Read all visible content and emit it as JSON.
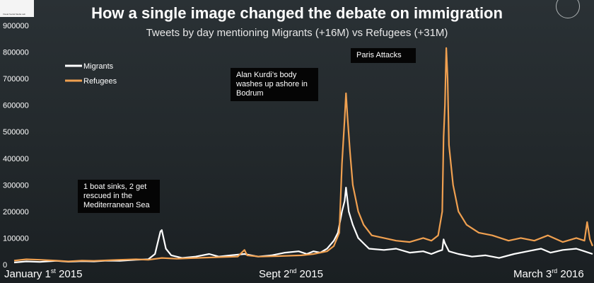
{
  "title": "How a single image changed the debate on immigration",
  "subtitle": "Tweets by day mentioning Migrants (+16M) vs Refugees (+31M)",
  "logo_text": "Visual Social Media Lab",
  "annotations": {
    "boat": "1 boat sinks, 2 get rescued in the Mediterranean Sea",
    "kurdi": "Alan Kurdi’s body washes up ashore in Bodrum",
    "paris": "Paris Attacks"
  },
  "x_labels": {
    "start": {
      "pre": "January 1",
      "sup": "st",
      "post": " 2015"
    },
    "mid": {
      "pre": "Sept 2",
      "sup": "nd",
      "post": " 2015"
    },
    "end": {
      "pre": "March 3",
      "sup": "rd",
      "post": " 2016"
    }
  },
  "colors": {
    "migrants": "#ffffff",
    "refugees": "#f0a050",
    "background": "#1e2326"
  },
  "chart_data": {
    "type": "line",
    "title": "How a single image changed the debate on immigration",
    "subtitle": "Tweets by day mentioning Migrants (+16M) vs Refugees (+31M)",
    "x_range": [
      "2015-01-01",
      "2016-03-03"
    ],
    "ylim": [
      0,
      900000
    ],
    "y_ticks": [
      0,
      100000,
      200000,
      300000,
      400000,
      500000,
      600000,
      700000,
      800000,
      900000
    ],
    "y_tick_labels": [
      "0",
      "100000",
      "200000",
      "300000",
      "400000",
      "500000",
      "600000",
      "700000",
      "800000",
      "900000"
    ],
    "grid": false,
    "legend": "top-left",
    "series": [
      {
        "name": "Migrants",
        "color": "#ffffff",
        "points": [
          [
            "2015-01-01",
            8000
          ],
          [
            "2015-01-10",
            12000
          ],
          [
            "2015-01-20",
            10000
          ],
          [
            "2015-02-01",
            14000
          ],
          [
            "2015-02-10",
            11000
          ],
          [
            "2015-02-20",
            13000
          ],
          [
            "2015-03-01",
            12000
          ],
          [
            "2015-03-10",
            15000
          ],
          [
            "2015-03-20",
            14000
          ],
          [
            "2015-04-01",
            18000
          ],
          [
            "2015-04-10",
            20000
          ],
          [
            "2015-04-15",
            40000
          ],
          [
            "2015-04-19",
            125000
          ],
          [
            "2015-04-20",
            130000
          ],
          [
            "2015-04-23",
            60000
          ],
          [
            "2015-04-27",
            35000
          ],
          [
            "2015-05-05",
            25000
          ],
          [
            "2015-05-15",
            30000
          ],
          [
            "2015-05-25",
            40000
          ],
          [
            "2015-06-01",
            30000
          ],
          [
            "2015-06-10",
            35000
          ],
          [
            "2015-06-20",
            40000
          ],
          [
            "2015-06-30",
            30000
          ],
          [
            "2015-07-10",
            35000
          ],
          [
            "2015-07-20",
            45000
          ],
          [
            "2015-07-30",
            50000
          ],
          [
            "2015-08-05",
            40000
          ],
          [
            "2015-08-10",
            50000
          ],
          [
            "2015-08-15",
            45000
          ],
          [
            "2015-08-20",
            60000
          ],
          [
            "2015-08-25",
            90000
          ],
          [
            "2015-08-28",
            120000
          ],
          [
            "2015-08-31",
            200000
          ],
          [
            "2015-09-02",
            240000
          ],
          [
            "2015-09-03",
            290000
          ],
          [
            "2015-09-05",
            200000
          ],
          [
            "2015-09-08",
            150000
          ],
          [
            "2015-09-12",
            100000
          ],
          [
            "2015-09-16",
            80000
          ],
          [
            "2015-09-20",
            60000
          ],
          [
            "2015-10-01",
            55000
          ],
          [
            "2015-10-10",
            60000
          ],
          [
            "2015-10-20",
            45000
          ],
          [
            "2015-10-30",
            50000
          ],
          [
            "2015-11-05",
            40000
          ],
          [
            "2015-11-10",
            50000
          ],
          [
            "2015-11-13",
            55000
          ],
          [
            "2015-11-14",
            95000
          ],
          [
            "2015-11-15",
            80000
          ],
          [
            "2015-11-18",
            50000
          ],
          [
            "2015-11-25",
            40000
          ],
          [
            "2015-12-05",
            30000
          ],
          [
            "2015-12-15",
            35000
          ],
          [
            "2015-12-25",
            25000
          ],
          [
            "2016-01-05",
            40000
          ],
          [
            "2016-01-15",
            50000
          ],
          [
            "2016-01-25",
            60000
          ],
          [
            "2016-02-01",
            45000
          ],
          [
            "2016-02-10",
            55000
          ],
          [
            "2016-02-20",
            60000
          ],
          [
            "2016-02-26",
            50000
          ],
          [
            "2016-03-03",
            40000
          ]
        ]
      },
      {
        "name": "Refugees",
        "color": "#f0a050",
        "points": [
          [
            "2015-01-01",
            15000
          ],
          [
            "2015-01-10",
            20000
          ],
          [
            "2015-01-20",
            18000
          ],
          [
            "2015-02-01",
            15000
          ],
          [
            "2015-02-10",
            12000
          ],
          [
            "2015-02-20",
            15000
          ],
          [
            "2015-03-01",
            14000
          ],
          [
            "2015-03-10",
            16000
          ],
          [
            "2015-03-20",
            18000
          ],
          [
            "2015-04-01",
            20000
          ],
          [
            "2015-04-10",
            18000
          ],
          [
            "2015-04-20",
            25000
          ],
          [
            "2015-05-01",
            22000
          ],
          [
            "2015-05-15",
            25000
          ],
          [
            "2015-06-01",
            28000
          ],
          [
            "2015-06-15",
            30000
          ],
          [
            "2015-06-20",
            55000
          ],
          [
            "2015-06-22",
            35000
          ],
          [
            "2015-07-01",
            30000
          ],
          [
            "2015-07-15",
            32000
          ],
          [
            "2015-08-01",
            35000
          ],
          [
            "2015-08-10",
            40000
          ],
          [
            "2015-08-20",
            50000
          ],
          [
            "2015-08-25",
            70000
          ],
          [
            "2015-08-29",
            120000
          ],
          [
            "2015-08-31",
            380000
          ],
          [
            "2015-09-02",
            550000
          ],
          [
            "2015-09-03",
            645000
          ],
          [
            "2015-09-04",
            560000
          ],
          [
            "2015-09-06",
            420000
          ],
          [
            "2015-09-08",
            300000
          ],
          [
            "2015-09-12",
            200000
          ],
          [
            "2015-09-16",
            150000
          ],
          [
            "2015-09-22",
            110000
          ],
          [
            "2015-10-01",
            100000
          ],
          [
            "2015-10-10",
            90000
          ],
          [
            "2015-10-20",
            85000
          ],
          [
            "2015-10-30",
            100000
          ],
          [
            "2015-11-05",
            90000
          ],
          [
            "2015-11-10",
            110000
          ],
          [
            "2015-11-13",
            200000
          ],
          [
            "2015-11-14",
            480000
          ],
          [
            "2015-11-15",
            600000
          ],
          [
            "2015-11-16",
            815000
          ],
          [
            "2015-11-17",
            700000
          ],
          [
            "2015-11-18",
            450000
          ],
          [
            "2015-11-21",
            300000
          ],
          [
            "2015-11-25",
            200000
          ],
          [
            "2015-12-01",
            150000
          ],
          [
            "2015-12-10",
            120000
          ],
          [
            "2015-12-20",
            110000
          ],
          [
            "2016-01-01",
            90000
          ],
          [
            "2016-01-10",
            100000
          ],
          [
            "2016-01-20",
            90000
          ],
          [
            "2016-01-30",
            110000
          ],
          [
            "2016-02-10",
            85000
          ],
          [
            "2016-02-20",
            100000
          ],
          [
            "2016-02-26",
            90000
          ],
          [
            "2016-02-28",
            160000
          ],
          [
            "2016-03-01",
            95000
          ],
          [
            "2016-03-03",
            70000
          ]
        ]
      }
    ]
  }
}
